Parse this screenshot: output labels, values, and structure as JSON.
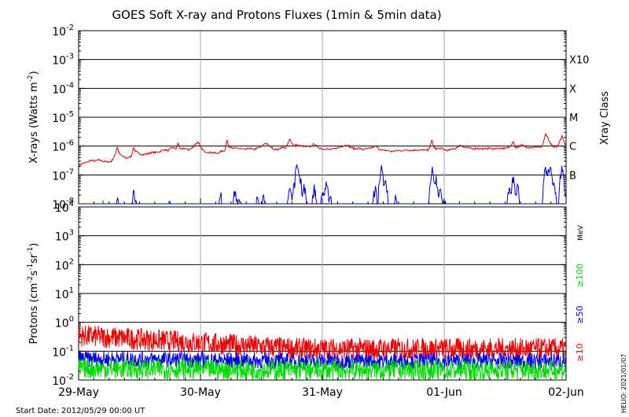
{
  "title": "GOES Soft X-ray and Protons Fluxes   (1min & 5min data)",
  "footer": {
    "start_date": "Start Date: 2012/05/29 00:00 UT",
    "credit": "HELIO: 2021/01/07"
  },
  "colors": {
    "xray_long": "#e00000",
    "xray_short": "#0000dd",
    "p10": "#ee0000",
    "p50": "#0000ee",
    "p100": "#00dd00",
    "grid": "#000000",
    "day_lines": "#aaaaaa"
  },
  "chart_data": [
    {
      "type": "line",
      "title": "GOES Soft X-ray and Protons Fluxes   (1min & 5min data)",
      "xlabel": "",
      "ylabel": "X-rays (Watts m^-2)",
      "y_scale": "log",
      "ylim": [
        1e-08,
        0.01
      ],
      "x_range": [
        "2012-05-29",
        "2012-06-02"
      ],
      "x_ticks": [
        "29-May",
        "30-May",
        "31-May",
        "01-Jun",
        "02-Jun"
      ],
      "y_ticks": [
        {
          "base": "10",
          "exp": "-8"
        },
        {
          "base": "10",
          "exp": "-7"
        },
        {
          "base": "10",
          "exp": "-6"
        },
        {
          "base": "10",
          "exp": "-5"
        },
        {
          "base": "10",
          "exp": "-4"
        },
        {
          "base": "10",
          "exp": "-3"
        },
        {
          "base": "10",
          "exp": "-2"
        }
      ],
      "right_axis_label": "Xray Class",
      "class_labels": [
        {
          "label": "B",
          "value": 1e-07
        },
        {
          "label": "C",
          "value": 1e-06
        },
        {
          "label": "M",
          "value": 1e-05
        },
        {
          "label": "X",
          "value": 0.0001
        },
        {
          "label": "X10",
          "value": 0.001
        }
      ],
      "grid": true,
      "series": [
        {
          "color": "#e00000",
          "points": [
            [
              0.0,
              2.2e-07
            ],
            [
              0.1,
              2.5e-07
            ],
            [
              0.2,
              2.7e-07
            ],
            [
              0.3,
              3.2e-07
            ],
            [
              0.4,
              3e-07
            ],
            [
              0.5,
              3.3e-07
            ],
            [
              0.6,
              3e-07
            ],
            [
              0.7,
              2.8e-07
            ],
            [
              0.8,
              2.9e-07
            ],
            [
              0.9,
              5e-07
            ],
            [
              0.95,
              9.5e-07
            ],
            [
              1.0,
              5.5e-07
            ],
            [
              1.1,
              4.2e-07
            ],
            [
              1.2,
              3.8e-07
            ],
            [
              1.3,
              4.5e-07
            ],
            [
              1.35,
              9e-07
            ],
            [
              1.4,
              6.5e-07
            ],
            [
              1.5,
              5.5e-07
            ],
            [
              1.6,
              5e-07
            ],
            [
              1.7,
              5.5e-07
            ],
            [
              1.8,
              6e-07
            ],
            [
              1.9,
              6e-07
            ],
            [
              2.0,
              6.5e-07
            ],
            [
              2.1,
              7.5e-07
            ],
            [
              2.2,
              7e-07
            ],
            [
              2.3,
              9e-07
            ],
            [
              2.4,
              8e-07
            ],
            [
              2.45,
              1.3e-06
            ],
            [
              2.5,
              7.5e-07
            ],
            [
              2.6,
              8.5e-07
            ],
            [
              2.7,
              7.5e-07
            ],
            [
              2.8,
              8.5e-07
            ],
            [
              2.85,
              1.1e-06
            ],
            [
              2.95,
              1.4e-06
            ],
            [
              3.0,
              9e-07
            ],
            [
              3.1,
              6.5e-07
            ],
            [
              3.2,
              6e-07
            ],
            [
              3.3,
              6e-07
            ],
            [
              3.4,
              5.5e-07
            ],
            [
              3.5,
              6.5e-07
            ],
            [
              3.6,
              7e-07
            ],
            [
              3.65,
              1.6e-06
            ],
            [
              3.7,
              1e-06
            ],
            [
              3.8,
              8e-07
            ],
            [
              3.9,
              8.5e-07
            ],
            [
              4.0,
              8e-07
            ],
            [
              4.1,
              7.5e-07
            ],
            [
              4.2,
              8.5e-07
            ],
            [
              4.3,
              7.5e-07
            ],
            [
              4.4,
              8.5e-07
            ],
            [
              4.5,
              9.5e-07
            ],
            [
              4.6,
              1.3e-06
            ],
            [
              4.7,
              1e-06
            ],
            [
              4.8,
              8e-07
            ],
            [
              4.9,
              7.5e-07
            ],
            [
              5.0,
              9e-07
            ],
            [
              5.1,
              8.5e-07
            ],
            [
              5.2,
              1.7e-06
            ],
            [
              5.3,
              1e-06
            ],
            [
              5.35,
              1.1e-06
            ],
            [
              5.5,
              1e-06
            ],
            [
              5.6,
              9.5e-07
            ],
            [
              5.7,
              9.5e-07
            ],
            [
              5.8,
              1.2e-06
            ],
            [
              5.9,
              9e-07
            ],
            [
              6.0,
              8e-07
            ],
            [
              6.1,
              8e-07
            ],
            [
              6.2,
              7.5e-07
            ],
            [
              6.3,
              8e-07
            ],
            [
              6.4,
              9e-07
            ],
            [
              6.5,
              1e-06
            ],
            [
              6.6,
              1.1e-06
            ],
            [
              6.7,
              9e-07
            ],
            [
              6.8,
              8e-07
            ],
            [
              6.9,
              8.5e-07
            ],
            [
              7.0,
              7.5e-07
            ],
            [
              7.1,
              8e-07
            ],
            [
              7.2,
              8.5e-07
            ],
            [
              7.3,
              1e-06
            ],
            [
              7.4,
              8e-07
            ],
            [
              7.5,
              7e-07
            ],
            [
              7.6,
              7e-07
            ],
            [
              7.7,
              6.5e-07
            ],
            [
              7.8,
              6.8e-07
            ],
            [
              7.9,
              7e-07
            ],
            [
              8.0,
              7e-07
            ],
            [
              8.1,
              7.5e-07
            ],
            [
              8.2,
              7e-07
            ],
            [
              8.3,
              7.5e-07
            ],
            [
              8.4,
              7e-07
            ],
            [
              8.5,
              7.5e-07
            ],
            [
              8.6,
              7e-07
            ],
            [
              8.7,
              1.5e-06
            ],
            [
              8.75,
              9e-07
            ],
            [
              8.8,
              8e-07
            ],
            [
              8.9,
              8.5e-07
            ],
            [
              9.0,
              7.5e-07
            ],
            [
              9.1,
              7e-07
            ],
            [
              9.2,
              8e-07
            ],
            [
              9.3,
              8.5e-07
            ],
            [
              9.4,
              1.1e-06
            ],
            [
              9.5,
              9e-07
            ],
            [
              9.6,
              8.5e-07
            ],
            [
              9.7,
              8e-07
            ],
            [
              9.8,
              8.5e-07
            ],
            [
              9.9,
              8e-07
            ],
            [
              10.0,
              8e-07
            ],
            [
              10.1,
              8.5e-07
            ],
            [
              10.2,
              8e-07
            ],
            [
              10.3,
              8.5e-07
            ],
            [
              10.4,
              8e-07
            ],
            [
              10.5,
              8.5e-07
            ],
            [
              10.6,
              9e-07
            ],
            [
              10.7,
              1.4e-06
            ],
            [
              10.75,
              9.5e-07
            ],
            [
              10.8,
              9e-07
            ],
            [
              10.9,
              1.1e-06
            ],
            [
              11.0,
              9.5e-07
            ],
            [
              11.1,
              9e-07
            ],
            [
              11.2,
              9e-07
            ],
            [
              11.3,
              9.5e-07
            ],
            [
              11.4,
              9e-07
            ],
            [
              11.5,
              2.6e-06
            ],
            [
              11.6,
              1.3e-06
            ],
            [
              11.65,
              1.1e-06
            ],
            [
              11.7,
              9.5e-07
            ],
            [
              11.8,
              1e-06
            ],
            [
              11.9,
              2.2e-06
            ],
            [
              12.0,
              1e-06
            ]
          ]
        },
        {
          "color": "#0000dd",
          "points": []
        }
      ]
    },
    {
      "type": "line",
      "xlabel": "",
      "ylabel": "Protons (cm^-2 s^-1 sr^-1)",
      "y_scale": "log",
      "ylim": [
        0.01,
        10000
      ],
      "x_range": [
        "2012-05-29",
        "2012-06-02"
      ],
      "x_ticks": [
        "29-May",
        "30-May",
        "31-May",
        "01-Jun",
        "02-Jun"
      ],
      "y_ticks": [
        {
          "base": "10",
          "exp": "-2"
        },
        {
          "base": "10",
          "exp": "-1"
        },
        {
          "base": "10",
          "exp": "0"
        },
        {
          "base": "10",
          "exp": "1"
        },
        {
          "base": "10",
          "exp": "2"
        },
        {
          "base": "10",
          "exp": "3"
        },
        {
          "base": "10",
          "exp": "4"
        }
      ],
      "threshold": 10,
      "right_axis_unit": "MeV",
      "grid": true,
      "series": [
        {
          "name": "≥10",
          "color": "#ee0000",
          "approx_level": [
            0.35,
            0.12
          ]
        },
        {
          "name": "≥50",
          "color": "#0000ee",
          "approx_level": [
            0.055,
            0.045
          ]
        },
        {
          "name": "≥100",
          "color": "#00dd00",
          "approx_level": [
            0.025,
            0.022
          ]
        }
      ]
    }
  ]
}
